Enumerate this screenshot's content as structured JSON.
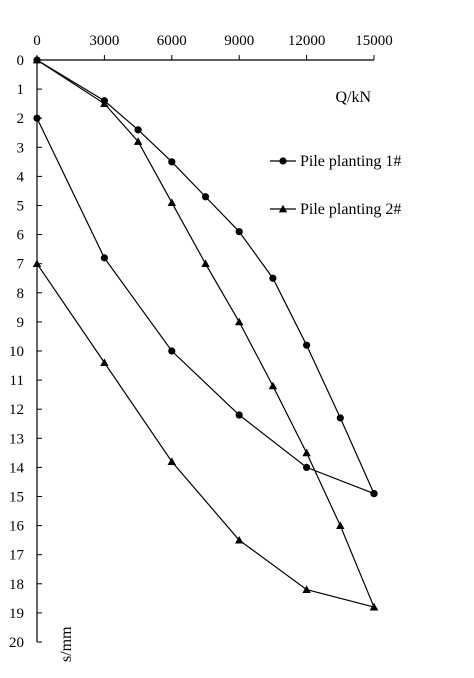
{
  "chart_data": {
    "type": "line",
    "xlabel": "Q/kN",
    "ylabel": "s/mm",
    "xlim": [
      0,
      15000
    ],
    "ylim": [
      0,
      20
    ],
    "x_axis_position": "top",
    "y_axis_inverted": true,
    "grid": false,
    "legend_position": "right",
    "x_ticks": [
      0,
      3000,
      6000,
      9000,
      12000,
      15000
    ],
    "y_ticks": [
      0,
      1,
      2,
      3,
      4,
      5,
      6,
      7,
      8,
      9,
      10,
      11,
      12,
      13,
      14,
      15,
      16,
      17,
      18,
      19,
      20
    ],
    "series": [
      {
        "name": "Pile planting 1#",
        "marker": "circle",
        "loading": {
          "x": [
            0,
            3000,
            4500,
            6000,
            7500,
            9000,
            10500,
            12000,
            13500,
            15000
          ],
          "y": [
            0,
            1.4,
            2.4,
            3.5,
            4.7,
            5.9,
            7.5,
            9.8,
            12.3,
            14.9
          ]
        },
        "unloading": {
          "x": [
            15000,
            12000,
            9000,
            6000,
            3000,
            0
          ],
          "y": [
            14.9,
            14.0,
            12.2,
            10.0,
            6.8,
            2.0
          ]
        }
      },
      {
        "name": "Pile planting 2#",
        "marker": "triangle",
        "loading": {
          "x": [
            0,
            3000,
            4500,
            6000,
            7500,
            9000,
            10500,
            12000,
            13500,
            15000
          ],
          "y": [
            0,
            1.5,
            2.8,
            4.9,
            7.0,
            9.0,
            11.2,
            13.5,
            16.0,
            18.8
          ]
        },
        "unloading": {
          "x": [
            15000,
            12000,
            9000,
            6000,
            3000,
            0
          ],
          "y": [
            18.8,
            18.2,
            16.5,
            13.8,
            10.4,
            7.0
          ]
        }
      }
    ]
  }
}
